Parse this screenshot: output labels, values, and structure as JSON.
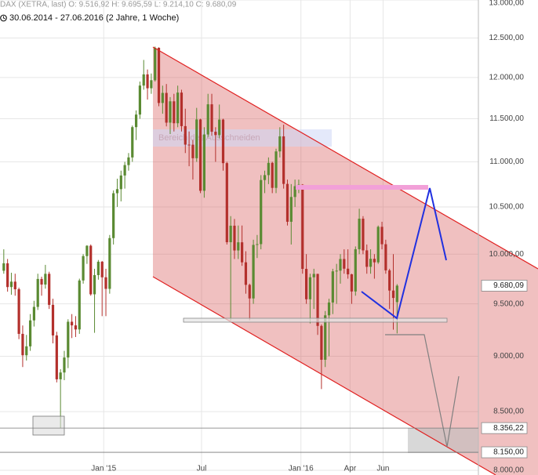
{
  "chart_data": {
    "type": "candlestick",
    "title": "DAX (XETRA, last)  O: 9.516,92  H: 9.695,59  L: 9.214,10  C: 9.680,09",
    "subtitle": "30.06.2014 - 27.06.2016 (2 Jahre, 1 Woche)",
    "annotation": "Bereich des Ausschneiden",
    "log_scale": true,
    "grid": true,
    "up_color": "#5a8a32",
    "down_color": "#b3302c",
    "xlim": [
      -1,
      125.5
    ],
    "xticks": [
      {
        "value": 26.43,
        "label": "Jan '15"
      },
      {
        "value": 52.29,
        "label": "Jul"
      },
      {
        "value": 78.57,
        "label": "Jan '16"
      },
      {
        "value": 91.57,
        "label": "Apr"
      },
      {
        "value": 100.29,
        "label": "Jun"
      }
    ],
    "ylim": [
      8000,
      13000
    ],
    "yticks": [
      {
        "value": 8000,
        "label": "8.000,00"
      },
      {
        "value": 8500,
        "label": "8.500,00"
      },
      {
        "value": 9000,
        "label": "9.000,00"
      },
      {
        "value": 9500,
        "label": "9.500,00"
      },
      {
        "value": 10000,
        "label": "10.000,00"
      },
      {
        "value": 10500,
        "label": "10.500,00"
      },
      {
        "value": 11000,
        "label": "11.000,00"
      },
      {
        "value": 11500,
        "label": "11.500,00"
      },
      {
        "value": 12000,
        "label": "12.000,00"
      },
      {
        "value": 12500,
        "label": "12.500,00"
      },
      {
        "value": 13000,
        "label": "13.000,00"
      }
    ],
    "last_price": {
      "value": 9680.09,
      "label": "9.680,09"
    },
    "price_lines": [
      {
        "value": 8356.22,
        "label": "8.356,22"
      },
      {
        "value": 8150,
        "label": "8.150,00"
      }
    ],
    "open": [
      9830,
      9906,
      9666,
      9720,
      9644,
      9210,
      9009,
      9092,
      9339,
      9470,
      9747,
      9691,
      9799,
      9490,
      9195,
      8788,
      8850,
      8988,
      9326,
      9291,
      9252,
      9732,
      9980,
      10087,
      9594,
      9786,
      9922,
      9764,
      9648,
      10167,
      10649,
      10694,
      10846,
      10963,
      11050,
      11401,
      11550,
      11901,
      12039,
      11868,
      11967,
      12374,
      11689,
      11811,
      11454,
      11709,
      11447,
      11815,
      11413,
      11197,
      11196,
      11041,
      11492,
      10676,
      11315,
      11673,
      11347,
      11308,
      11490,
      10985,
      10124,
      10298,
      10038,
      10123,
      9916,
      9688,
      9553,
      10096,
      10104,
      10795,
      10850,
      10988,
      10708,
      11119,
      11293,
      10752,
      10340,
      10608,
      10727,
      10743,
      9849,
      9545,
      9764,
      9798,
      9286,
      8967,
      9388,
      9513,
      9824,
      9831,
      9950,
      9851,
      9794,
      9622,
      10051,
      10373,
      10039,
      9870,
      9952,
      9916,
      10286,
      10103,
      9834,
      9631,
      9516.92
    ],
    "high": [
      10050,
      9950,
      9810,
      9800,
      9660,
      9290,
      9200,
      9400,
      9530,
      9800,
      9770,
      9890,
      9820,
      9550,
      9230,
      8880,
      9050,
      9350,
      9400,
      9380,
      9750,
      10000,
      10093,
      10100,
      9850,
      9940,
      9930,
      9850,
      10200,
      10680,
      10810,
      10900,
      11000,
      11100,
      11420,
      11600,
      11950,
      12220,
      12100,
      12050,
      12390,
      12380,
      11900,
      11920,
      11760,
      11800,
      11900,
      11850,
      11620,
      11350,
      11250,
      11630,
      11500,
      11400,
      11800,
      11800,
      11400,
      11670,
      11500,
      11000,
      10400,
      10370,
      10300,
      10300,
      10030,
      9700,
      10150,
      10200,
      10850,
      10900,
      11050,
      11000,
      11150,
      11400,
      11430,
      10800,
      10750,
      10800,
      10800,
      10750,
      10000,
      9800,
      9850,
      9800,
      9300,
      9430,
      9550,
      9850,
      9900,
      10000,
      10050,
      10050,
      9800,
      10080,
      10480,
      10400,
      10100,
      10050,
      10000,
      10300,
      10340,
      10150,
      9850,
      10000,
      9695.59
    ],
    "low": [
      9800,
      9620,
      9590,
      9580,
      9160,
      8900,
      8960,
      9050,
      9280,
      9440,
      9580,
      9650,
      9450,
      9120,
      8760,
      8355,
      8780,
      8890,
      9170,
      9180,
      9210,
      9700,
      9900,
      9580,
      9220,
      9740,
      9380,
      9380,
      9600,
      10100,
      10500,
      10560,
      10700,
      10900,
      11000,
      11250,
      11500,
      11850,
      11730,
      11800,
      11950,
      11650,
      11560,
      11410,
      11320,
      11350,
      11400,
      11350,
      11100,
      10950,
      10800,
      11000,
      10650,
      10600,
      11280,
      11300,
      11000,
      11270,
      10900,
      10100,
      9338,
      9950,
      9950,
      9880,
      9600,
      9340,
      9500,
      9960,
      10050,
      10650,
      10750,
      10650,
      10650,
      11050,
      10700,
      10300,
      10100,
      10500,
      10650,
      9800,
      9500,
      9310,
      9450,
      9200,
      8700,
      8900,
      9000,
      9400,
      9500,
      9700,
      9800,
      9750,
      9500,
      9580,
      10000,
      10000,
      9800,
      9800,
      9750,
      9900,
      10050,
      9800,
      9450,
      9250,
      9214.1
    ],
    "close": [
      9906,
      9666,
      9720,
      9644,
      9210,
      9009,
      9092,
      9339,
      9470,
      9747,
      9691,
      9799,
      9490,
      9195,
      8788,
      8850,
      8988,
      9326,
      9291,
      9252,
      9732,
      9980,
      10087,
      9594,
      9786,
      9922,
      9764,
      9648,
      10167,
      10649,
      10694,
      10846,
      10963,
      11050,
      11401,
      11550,
      11901,
      12039,
      11868,
      11967,
      12374,
      11689,
      11811,
      11454,
      11709,
      11447,
      11815,
      11413,
      11197,
      11196,
      11041,
      11492,
      10676,
      11315,
      11673,
      11347,
      11308,
      11490,
      10985,
      10124,
      10298,
      10038,
      10123,
      9916,
      9688,
      9553,
      10096,
      10104,
      10795,
      10850,
      10988,
      10708,
      11119,
      11293,
      10752,
      10340,
      10608,
      10727,
      10743,
      9849,
      9545,
      9764,
      9798,
      9286,
      8967,
      9388,
      9513,
      9824,
      9831,
      9950,
      9851,
      9794,
      9622,
      10051,
      10373,
      10039,
      9870,
      9952,
      9916,
      10286,
      10103,
      9834,
      9631,
      9558,
      9680.09
    ]
  }
}
